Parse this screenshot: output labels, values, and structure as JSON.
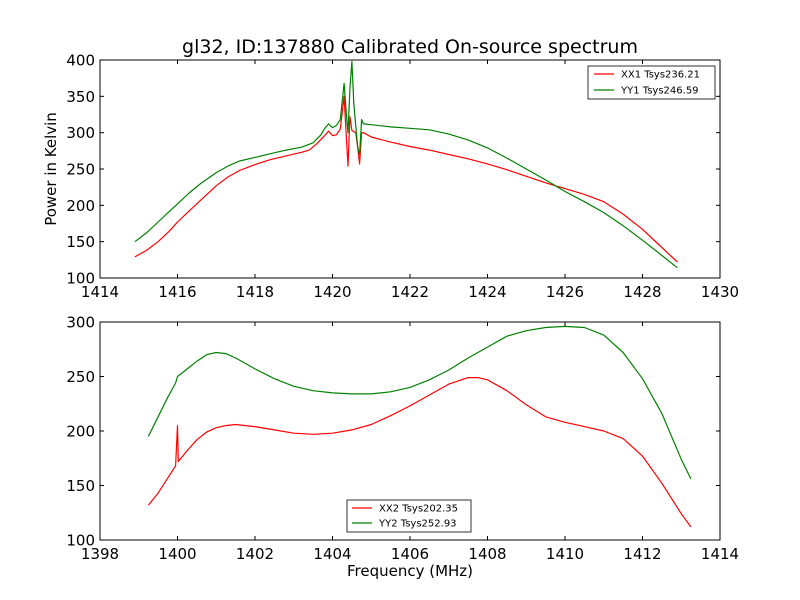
{
  "chart_data": [
    {
      "type": "line",
      "title": "gl32, ID:137880 Calibrated On-source spectrum",
      "xlabel": "",
      "ylabel": "Power in Kelvin",
      "xlim": [
        1414,
        1430
      ],
      "ylim": [
        100,
        400
      ],
      "xticks": [
        1414,
        1416,
        1418,
        1420,
        1422,
        1424,
        1426,
        1428,
        1430
      ],
      "yticks": [
        100,
        150,
        200,
        250,
        300,
        350,
        400
      ],
      "grid": false,
      "legend_position": "top-right",
      "series": [
        {
          "name": "XX1 Tsys236.21",
          "color": "#ff0000",
          "points": [
            [
              1414.9,
              129
            ],
            [
              1415.2,
              138
            ],
            [
              1415.5,
              150
            ],
            [
              1415.8,
              165
            ],
            [
              1416.0,
              177
            ],
            [
              1416.3,
              192
            ],
            [
              1416.6,
              207
            ],
            [
              1417.0,
              227
            ],
            [
              1417.3,
              239
            ],
            [
              1417.6,
              248
            ],
            [
              1418.0,
              256
            ],
            [
              1418.4,
              263
            ],
            [
              1418.8,
              268
            ],
            [
              1419.2,
              273
            ],
            [
              1419.4,
              276
            ],
            [
              1419.6,
              285
            ],
            [
              1419.8,
              296
            ],
            [
              1419.9,
              302
            ],
            [
              1420.0,
              296
            ],
            [
              1420.1,
              297
            ],
            [
              1420.2,
              305
            ],
            [
              1420.3,
              350
            ],
            [
              1420.35,
              300
            ],
            [
              1420.4,
              254
            ],
            [
              1420.45,
              322
            ],
            [
              1420.5,
              303
            ],
            [
              1420.6,
              300
            ],
            [
              1420.65,
              280
            ],
            [
              1420.7,
              257
            ],
            [
              1420.75,
              300
            ],
            [
              1420.8,
              300
            ],
            [
              1421.0,
              294
            ],
            [
              1421.5,
              287
            ],
            [
              1422.0,
              281
            ],
            [
              1422.5,
              276
            ],
            [
              1423.0,
              270
            ],
            [
              1423.5,
              264
            ],
            [
              1424.0,
              257
            ],
            [
              1424.5,
              249
            ],
            [
              1425.0,
              240
            ],
            [
              1425.5,
              231
            ],
            [
              1426.0,
              223
            ],
            [
              1426.5,
              215
            ],
            [
              1427.0,
              205
            ],
            [
              1427.5,
              188
            ],
            [
              1428.0,
              167
            ],
            [
              1428.5,
              142
            ],
            [
              1428.9,
              122
            ]
          ]
        },
        {
          "name": "YY1 Tsys246.59",
          "color": "#008000",
          "points": [
            [
              1414.9,
              150
            ],
            [
              1415.2,
              162
            ],
            [
              1415.5,
              177
            ],
            [
              1415.8,
              192
            ],
            [
              1416.0,
              202
            ],
            [
              1416.3,
              217
            ],
            [
              1416.6,
              230
            ],
            [
              1417.0,
              245
            ],
            [
              1417.3,
              254
            ],
            [
              1417.6,
              261
            ],
            [
              1418.0,
              266
            ],
            [
              1418.4,
              271
            ],
            [
              1418.8,
              276
            ],
            [
              1419.2,
              280
            ],
            [
              1419.5,
              286
            ],
            [
              1419.7,
              297
            ],
            [
              1419.8,
              306
            ],
            [
              1419.9,
              312
            ],
            [
              1420.0,
              307
            ],
            [
              1420.1,
              310
            ],
            [
              1420.2,
              318
            ],
            [
              1420.3,
              368
            ],
            [
              1420.35,
              330
            ],
            [
              1420.4,
              300
            ],
            [
              1420.45,
              360
            ],
            [
              1420.5,
              398
            ],
            [
              1420.55,
              340
            ],
            [
              1420.6,
              310
            ],
            [
              1420.65,
              280
            ],
            [
              1420.7,
              270
            ],
            [
              1420.75,
              318
            ],
            [
              1420.8,
              312
            ],
            [
              1421.0,
              311
            ],
            [
              1421.5,
              308
            ],
            [
              1422.0,
              306
            ],
            [
              1422.5,
              304
            ],
            [
              1423.0,
              298
            ],
            [
              1423.5,
              290
            ],
            [
              1424.0,
              279
            ],
            [
              1424.5,
              265
            ],
            [
              1425.0,
              250
            ],
            [
              1425.5,
              235
            ],
            [
              1426.0,
              219
            ],
            [
              1426.5,
              205
            ],
            [
              1427.0,
              190
            ],
            [
              1427.5,
              172
            ],
            [
              1428.0,
              152
            ],
            [
              1428.5,
              131
            ],
            [
              1428.9,
              114
            ]
          ]
        }
      ]
    },
    {
      "type": "line",
      "title": "",
      "xlabel": "Frequency (MHz)",
      "ylabel": "",
      "xlim": [
        1398,
        1414
      ],
      "ylim": [
        100,
        300
      ],
      "xticks": [
        1398,
        1400,
        1402,
        1404,
        1406,
        1408,
        1410,
        1412,
        1414
      ],
      "yticks": [
        100,
        150,
        200,
        250,
        300
      ],
      "grid": false,
      "legend_position": "bottom-center",
      "series": [
        {
          "name": "XX2 Tsys202.35",
          "color": "#ff0000",
          "points": [
            [
              1399.25,
              132
            ],
            [
              1399.5,
              143
            ],
            [
              1399.75,
              157
            ],
            [
              1399.95,
              168
            ],
            [
              1400.0,
              205
            ],
            [
              1400.02,
              172
            ],
            [
              1400.25,
              182
            ],
            [
              1400.5,
              192
            ],
            [
              1400.75,
              199
            ],
            [
              1401.0,
              203
            ],
            [
              1401.25,
              205
            ],
            [
              1401.5,
              206
            ],
            [
              1401.75,
              205
            ],
            [
              1402.0,
              204
            ],
            [
              1402.5,
              201
            ],
            [
              1403.0,
              198
            ],
            [
              1403.5,
              197
            ],
            [
              1404.0,
              198
            ],
            [
              1404.5,
              201
            ],
            [
              1405.0,
              206
            ],
            [
              1405.5,
              214
            ],
            [
              1406.0,
              223
            ],
            [
              1406.5,
              233
            ],
            [
              1407.0,
              243
            ],
            [
              1407.5,
              249
            ],
            [
              1407.75,
              249
            ],
            [
              1408.0,
              247
            ],
            [
              1408.5,
              237
            ],
            [
              1409.0,
              224
            ],
            [
              1409.5,
              213
            ],
            [
              1410.0,
              208
            ],
            [
              1410.5,
              204
            ],
            [
              1411.0,
              200
            ],
            [
              1411.5,
              193
            ],
            [
              1412.0,
              177
            ],
            [
              1412.5,
              152
            ],
            [
              1413.0,
              124
            ],
            [
              1413.25,
              112
            ]
          ]
        },
        {
          "name": "YY2 Tsys252.93",
          "color": "#008000",
          "points": [
            [
              1399.25,
              195
            ],
            [
              1399.5,
              213
            ],
            [
              1399.75,
              231
            ],
            [
              1399.95,
              244
            ],
            [
              1400.0,
              250
            ],
            [
              1400.25,
              257
            ],
            [
              1400.5,
              264
            ],
            [
              1400.75,
              270
            ],
            [
              1401.0,
              272
            ],
            [
              1401.25,
              271
            ],
            [
              1401.5,
              267
            ],
            [
              1401.75,
              262
            ],
            [
              1402.0,
              257
            ],
            [
              1402.5,
              248
            ],
            [
              1403.0,
              241
            ],
            [
              1403.5,
              237
            ],
            [
              1404.0,
              235
            ],
            [
              1404.5,
              234
            ],
            [
              1405.0,
              234
            ],
            [
              1405.5,
              236
            ],
            [
              1406.0,
              240
            ],
            [
              1406.5,
              247
            ],
            [
              1407.0,
              256
            ],
            [
              1407.5,
              267
            ],
            [
              1408.0,
              277
            ],
            [
              1408.5,
              287
            ],
            [
              1409.0,
              292
            ],
            [
              1409.5,
              295
            ],
            [
              1410.0,
              296
            ],
            [
              1410.5,
              295
            ],
            [
              1411.0,
              288
            ],
            [
              1411.5,
              272
            ],
            [
              1412.0,
              248
            ],
            [
              1412.5,
              216
            ],
            [
              1413.0,
              174
            ],
            [
              1413.25,
              156
            ]
          ]
        }
      ]
    }
  ]
}
